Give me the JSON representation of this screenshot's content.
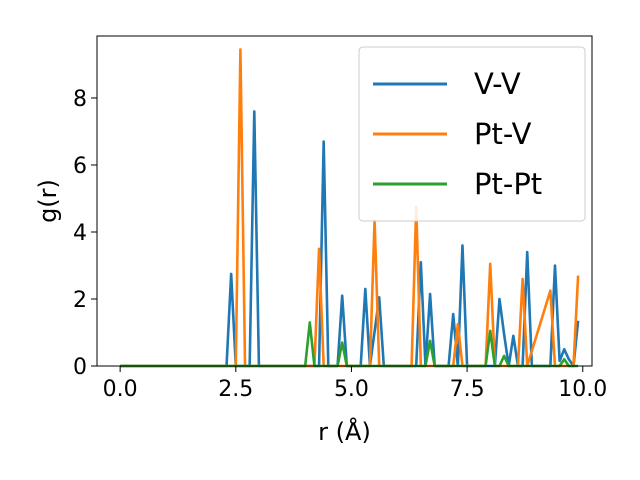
{
  "chart_data": {
    "type": "line",
    "xlabel": "r (Å)",
    "ylabel": "g(r)",
    "xlim": [
      -0.5,
      10.2
    ],
    "ylim": [
      0,
      9.85
    ],
    "xticks": [
      0.0,
      2.5,
      5.0,
      7.5,
      10.0
    ],
    "xtick_labels": [
      "0.0",
      "2.5",
      "5.0",
      "7.5",
      "10.0"
    ],
    "yticks": [
      0,
      2,
      4,
      6,
      8
    ],
    "ytick_labels": [
      "0",
      "2",
      "4",
      "6",
      "8"
    ],
    "grid": false,
    "legend_position": "top-right",
    "series": [
      {
        "name": "V-V",
        "color": "#1f77b4",
        "x": [
          0.0,
          2.3,
          2.4,
          2.5,
          2.8,
          2.9,
          3.0,
          4.3,
          4.4,
          4.5,
          4.7,
          4.8,
          4.9,
          5.2,
          5.3,
          5.4,
          5.6,
          5.7,
          6.4,
          6.5,
          6.6,
          6.7,
          6.8,
          7.1,
          7.2,
          7.3,
          7.4,
          7.5,
          8.0,
          8.1,
          8.2,
          8.3,
          8.4,
          8.5,
          8.6,
          8.7,
          8.8,
          8.9,
          9.3,
          9.4,
          9.5,
          9.6,
          9.7,
          9.8,
          9.9
        ],
        "y": [
          0,
          0,
          2.75,
          0,
          0,
          7.6,
          0,
          0,
          6.7,
          0,
          0,
          2.1,
          0,
          0,
          2.3,
          0,
          2.05,
          0,
          0,
          3.1,
          0,
          2.15,
          0,
          0,
          1.55,
          0,
          3.6,
          0,
          0,
          0,
          2.0,
          0.95,
          0,
          0.9,
          0,
          0,
          3.4,
          0,
          0,
          3.0,
          0.15,
          0.5,
          0.2,
          0,
          1.35
        ]
      },
      {
        "name": "Pt-V",
        "color": "#ff7f0e",
        "x": [
          0.0,
          2.5,
          2.6,
          2.7,
          4.2,
          4.3,
          4.4,
          5.4,
          5.5,
          5.6,
          6.3,
          6.4,
          6.5,
          7.2,
          7.3,
          7.4,
          7.9,
          8.0,
          8.1,
          8.6,
          8.7,
          8.8,
          9.3,
          9.4,
          9.5,
          9.8,
          9.9
        ],
        "y": [
          0,
          0,
          9.45,
          0,
          0,
          3.5,
          0,
          0,
          4.35,
          0,
          0,
          4.75,
          0,
          0,
          1.25,
          0,
          0,
          3.05,
          0,
          0,
          2.6,
          0,
          2.25,
          0,
          0,
          0,
          2.7
        ]
      },
      {
        "name": "Pt-Pt",
        "color": "#2ca02c",
        "x": [
          0.0,
          4.0,
          4.1,
          4.2,
          4.7,
          4.8,
          4.9,
          6.6,
          6.7,
          6.8,
          7.9,
          8.0,
          8.1,
          8.2,
          8.3,
          8.4,
          9.5,
          9.6,
          9.7,
          9.9
        ],
        "y": [
          0,
          0,
          1.3,
          0,
          0,
          0.7,
          0,
          0,
          0.75,
          0,
          0,
          1.05,
          0,
          0,
          0.3,
          0,
          0,
          0.2,
          0,
          0
        ]
      }
    ]
  }
}
